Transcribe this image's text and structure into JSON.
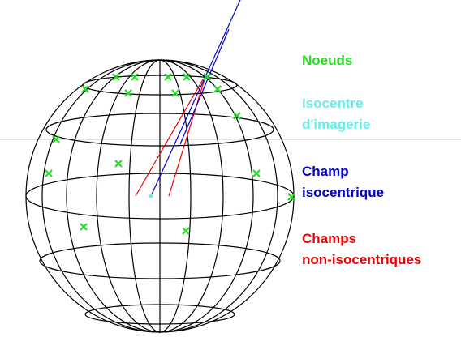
{
  "legend": [
    {
      "lines": [
        "Noeuds"
      ],
      "color": "#22dd22"
    },
    {
      "lines": [
        "Isocentre",
        "d'imagerie"
      ],
      "color": "#66eeee"
    },
    {
      "lines": [
        "Champ",
        "isocentrique"
      ],
      "color": "#0000cc"
    },
    {
      "lines": [
        "Champs",
        "non-isocentriques"
      ],
      "color": "#ee0000"
    }
  ]
}
